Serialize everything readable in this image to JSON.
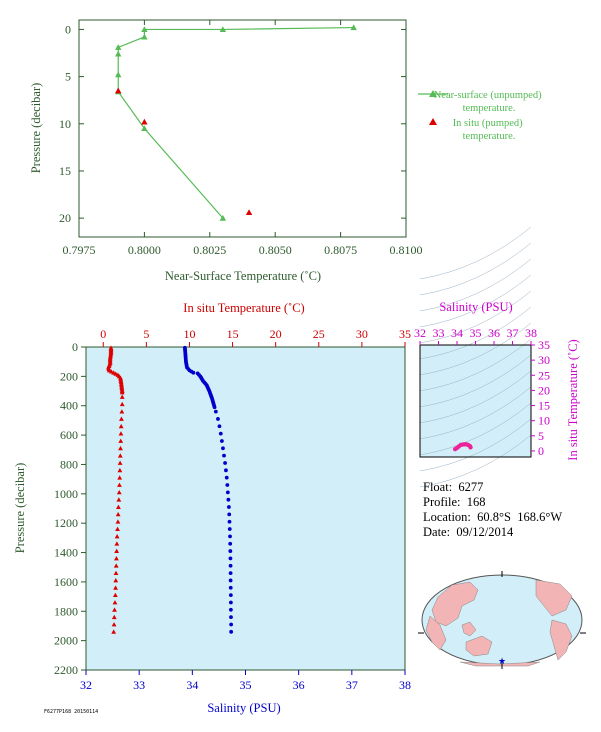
{
  "float_info": {
    "float_label": "Float:",
    "float_value": "6277",
    "profile_label": "Profile:",
    "profile_value": "168",
    "location_label": "Location:",
    "location_value": "60.8°S  168.6°W",
    "date_label": "Date:",
    "date_value": "09/12/2014"
  },
  "footer_stamp": "F6277P168 20150114",
  "colors": {
    "axis_green": "#2e5a2e",
    "near_surface_green": "#55bb55",
    "in_situ_red": "#dd0000",
    "temp_axis_red": "#cc0000",
    "salinity_blue": "#0000cc",
    "salinity_magenta": "#cc00cc",
    "plot_bg": "#d2eef8",
    "land": "#f2b4b4"
  },
  "chart_data": [
    {
      "id": "near_surface",
      "type": "line",
      "xlabel": "Near-Surface Temperature (˚C)",
      "ylabel": "Pressure (decibar)",
      "xlim": [
        0.7975,
        0.81
      ],
      "ylim": [
        22,
        -1
      ],
      "xticks": [
        "0.7975",
        "0.8000",
        "0.8025",
        "0.8050",
        "0.8075",
        "0.8100"
      ],
      "yticks": [
        "0",
        "5",
        "10",
        "15",
        "20"
      ],
      "series": [
        {
          "name": "Near-surface (unpumped) temperature.",
          "marker": "triangle-line",
          "points": [
            [
              0.808,
              -0.2
            ],
            [
              0.803,
              0.0
            ],
            [
              0.8,
              0.0
            ],
            [
              0.8,
              0.8
            ],
            [
              0.799,
              1.9
            ],
            [
              0.799,
              2.6
            ],
            [
              0.799,
              4.8
            ],
            [
              0.799,
              6.6
            ],
            [
              0.8,
              10.5
            ],
            [
              0.803,
              20.0
            ]
          ]
        },
        {
          "name": "In situ (pumped) temperature.",
          "marker": "triangle",
          "points": [
            [
              0.799,
              6.5
            ],
            [
              0.8,
              9.8
            ],
            [
              0.804,
              19.4
            ]
          ]
        }
      ]
    },
    {
      "id": "profile",
      "type": "scatter",
      "ylabel": "Pressure (decibar)",
      "x_bottom_label": "Salinity (PSU)",
      "x_top_label": "In situ Temperature (˚C)",
      "salinity_lim": [
        32,
        38
      ],
      "temperature_lim": [
        -2,
        35
      ],
      "ylim": [
        2200,
        0
      ],
      "salinity_ticks": [
        "32",
        "33",
        "34",
        "35",
        "36",
        "37",
        "38"
      ],
      "temperature_ticks": [
        "0",
        "5",
        "10",
        "15",
        "20",
        "25",
        "30",
        "35"
      ],
      "pressure_ticks": [
        "0",
        "200",
        "400",
        "600",
        "800",
        "1000",
        "1200",
        "1400",
        "1600",
        "1800",
        "2000",
        "2200"
      ],
      "temperature_profile": [
        [
          0.9,
          5
        ],
        [
          0.9,
          40
        ],
        [
          0.8,
          80
        ],
        [
          0.8,
          110
        ],
        [
          0.6,
          140
        ],
        [
          0.7,
          160
        ],
        [
          1.2,
          175
        ],
        [
          1.7,
          190
        ],
        [
          2.0,
          210
        ],
        [
          2.1,
          250
        ],
        [
          2.2,
          300
        ],
        [
          2.2,
          350
        ],
        [
          2.2,
          400
        ],
        [
          2.15,
          450
        ],
        [
          2.1,
          500
        ],
        [
          2.05,
          600
        ],
        [
          2.0,
          700
        ],
        [
          1.95,
          800
        ],
        [
          1.9,
          900
        ],
        [
          1.85,
          1000
        ],
        [
          1.75,
          1100
        ],
        [
          1.7,
          1200
        ],
        [
          1.6,
          1300
        ],
        [
          1.55,
          1400
        ],
        [
          1.5,
          1500
        ],
        [
          1.45,
          1600
        ],
        [
          1.4,
          1700
        ],
        [
          1.3,
          1800
        ],
        [
          1.25,
          1900
        ],
        [
          1.2,
          1950
        ]
      ],
      "salinity_profile": [
        [
          33.86,
          5
        ],
        [
          33.87,
          50
        ],
        [
          33.88,
          100
        ],
        [
          33.9,
          140
        ],
        [
          33.95,
          160
        ],
        [
          34.02,
          175
        ],
        [
          34.1,
          180
        ],
        [
          34.15,
          200
        ],
        [
          34.2,
          230
        ],
        [
          34.27,
          260
        ],
        [
          34.32,
          300
        ],
        [
          34.37,
          350
        ],
        [
          34.41,
          400
        ],
        [
          34.45,
          450
        ],
        [
          34.49,
          500
        ],
        [
          34.54,
          600
        ],
        [
          34.58,
          700
        ],
        [
          34.62,
          800
        ],
        [
          34.65,
          900
        ],
        [
          34.67,
          1000
        ],
        [
          34.69,
          1100
        ],
        [
          34.7,
          1200
        ],
        [
          34.71,
          1300
        ],
        [
          34.715,
          1400
        ],
        [
          34.72,
          1500
        ],
        [
          34.72,
          1600
        ],
        [
          34.725,
          1700
        ],
        [
          34.725,
          1800
        ],
        [
          34.73,
          1900
        ],
        [
          34.73,
          1950
        ]
      ]
    },
    {
      "id": "ts_diagram",
      "type": "scatter",
      "xlabel": "Salinity (PSU)",
      "ylabel": "In situ Temperature (˚C)",
      "xlim": [
        32,
        38
      ],
      "ylim": [
        -2,
        35
      ],
      "xticks": [
        "32",
        "33",
        "34",
        "35",
        "36",
        "37",
        "38"
      ],
      "yticks": [
        "0",
        "5",
        "10",
        "15",
        "20",
        "25",
        "30",
        "35"
      ],
      "points": [
        [
          33.9,
          0.6
        ],
        [
          34.0,
          1.0
        ],
        [
          34.1,
          1.5
        ],
        [
          34.2,
          2.0
        ],
        [
          34.3,
          2.1
        ],
        [
          34.4,
          2.2
        ],
        [
          34.5,
          2.2
        ],
        [
          34.6,
          2.0
        ],
        [
          34.7,
          1.6
        ],
        [
          34.73,
          1.2
        ]
      ]
    }
  ]
}
